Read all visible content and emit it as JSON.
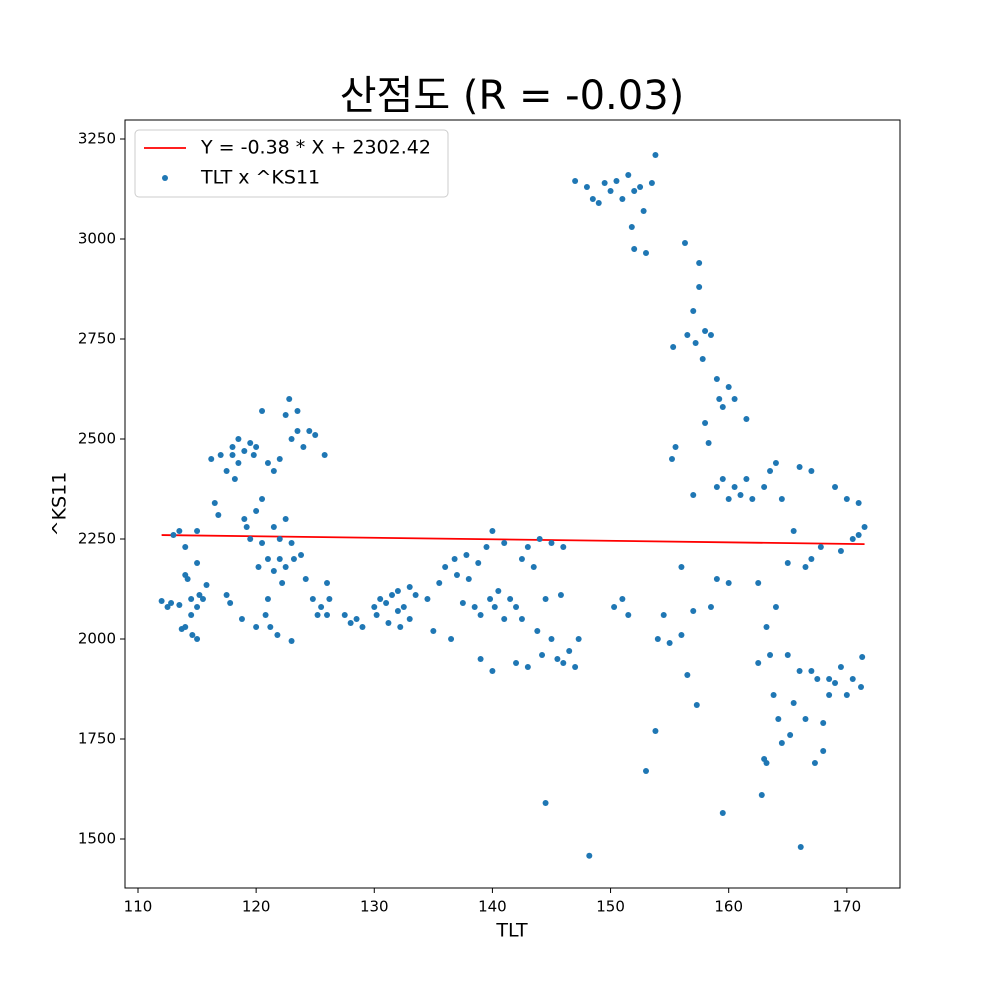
{
  "chart_data": {
    "type": "scatter",
    "title": "산점도 (R = -0.03)",
    "x_label": "TLT",
    "y_label": "^KS11",
    "xlim": [
      108.9,
      174.5
    ],
    "ylim": [
      1377.5,
      3297.5
    ],
    "xticks": [
      110,
      120,
      130,
      140,
      150,
      160,
      170
    ],
    "yticks": [
      1500,
      1750,
      2000,
      2250,
      2500,
      2750,
      3000,
      3250
    ],
    "grid": false,
    "legend": "upper left",
    "series": [
      {
        "name": "Y = -0.38 * X + 2302.42",
        "type": "line",
        "color": "#ff0000",
        "x": [
          112,
          171.5
        ],
        "values": [
          2259.86,
          2237.25
        ]
      },
      {
        "name": "TLT x ^KS11",
        "type": "scatter",
        "color": "#1f77b4",
        "x": [
          112,
          112.5,
          112.8,
          113,
          113.5,
          113.5,
          113.7,
          114,
          114,
          114,
          114.2,
          114.5,
          114.5,
          114.6,
          115,
          115,
          115,
          115,
          115.2,
          115.5,
          115.8,
          116.2,
          116.5,
          116.8,
          117,
          117.5,
          117.5,
          117.8,
          118,
          118,
          118.2,
          118.5,
          118.5,
          118.8,
          119,
          119,
          119.2,
          119.5,
          119.5,
          119.8,
          120,
          120,
          120,
          120.2,
          120.5,
          120.5,
          120.5,
          120.8,
          121,
          121,
          121,
          121.2,
          121.5,
          121.5,
          121.5,
          121.8,
          122,
          122,
          122,
          122.2,
          122.5,
          122.5,
          122.5,
          122.8,
          123,
          123,
          123,
          123.2,
          123.5,
          123.5,
          123.8,
          124,
          124.2,
          124.5,
          124.8,
          125,
          125.2,
          125.5,
          125.8,
          126,
          126,
          126.2,
          127.5,
          128,
          128.5,
          129,
          130,
          130.2,
          130.5,
          131,
          131.2,
          131.5,
          132,
          132,
          132.2,
          132.5,
          133,
          133,
          133.5,
          134.5,
          135,
          135.5,
          136,
          136.5,
          136.8,
          137,
          137.5,
          137.8,
          138,
          138.5,
          138.8,
          139,
          139,
          139.5,
          139.8,
          140,
          140,
          140.2,
          140.5,
          141,
          141,
          141.5,
          142,
          142,
          142.5,
          142.5,
          143,
          143,
          143.5,
          143.8,
          144,
          144.2,
          144.5,
          144.5,
          145,
          145,
          145.5,
          145.8,
          146,
          146,
          146.5,
          147,
          147.3,
          147,
          148,
          148.5,
          149,
          149.5,
          150,
          150.5,
          151,
          151.5,
          152,
          152,
          152.5,
          152.8,
          153,
          153.5,
          153.8,
          151.8,
          148.2,
          150.3,
          151,
          151.5,
          153,
          153.8,
          154,
          154.5,
          155,
          155.2,
          155.5,
          155.3,
          156,
          156,
          156.5,
          157,
          156.3,
          156.5,
          157,
          157.2,
          157.5,
          157.5,
          157.8,
          158,
          158.3,
          158.5,
          159,
          159.2,
          159.5,
          160,
          160.5,
          161.5,
          157,
          158,
          159,
          159.5,
          160,
          160.5,
          161,
          161.5,
          162,
          157.3,
          158.5,
          159.5,
          159,
          160,
          162.5,
          163,
          163.2,
          163.5,
          163.5,
          163.8,
          164,
          164,
          164.2,
          164.5,
          164.5,
          165,
          165,
          165.2,
          165.5,
          165.5,
          166,
          166,
          166.1,
          166.5,
          166.5,
          167,
          167,
          167,
          167.3,
          167.5,
          167.8,
          168,
          168,
          168.5,
          168.5,
          169,
          169,
          169.5,
          169.5,
          170,
          170,
          170.5,
          170.5,
          171,
          171,
          171.2,
          171.3,
          171.5,
          162.8,
          163,
          163.2,
          162.5
        ],
        "values": [
          2095,
          2080,
          2090,
          2260,
          2270,
          2085,
          2025,
          2030,
          2230,
          2160,
          2150,
          2100,
          2060,
          2010,
          2000,
          2080,
          2270,
          2190,
          2110,
          2100,
          2135,
          2450,
          2340,
          2310,
          2460,
          2420,
          2110,
          2090,
          2480,
          2460,
          2400,
          2500,
          2440,
          2050,
          2300,
          2470,
          2280,
          2490,
          2250,
          2460,
          2480,
          2320,
          2030,
          2180,
          2570,
          2350,
          2240,
          2060,
          2440,
          2200,
          2100,
          2030,
          2420,
          2280,
          2170,
          2010,
          2450,
          2250,
          2200,
          2140,
          2560,
          2300,
          2180,
          2600,
          2240,
          2500,
          1995,
          2200,
          2570,
          2520,
          2210,
          2480,
          2150,
          2520,
          2100,
          2510,
          2060,
          2080,
          2460,
          2060,
          2140,
          2100,
          2060,
          2040,
          2050,
          2030,
          2080,
          2060,
          2100,
          2090,
          2040,
          2110,
          2070,
          2120,
          2030,
          2080,
          2130,
          2050,
          2110,
          2100,
          2020,
          2140,
          2180,
          2000,
          2200,
          2160,
          2090,
          2210,
          2150,
          2080,
          2190,
          2060,
          1950,
          2230,
          2100,
          1920,
          2270,
          2080,
          2120,
          2050,
          2240,
          2100,
          2080,
          1940,
          2050,
          2200,
          1930,
          2230,
          2180,
          2020,
          2250,
          1960,
          2100,
          1590,
          2000,
          2240,
          1950,
          2110,
          2230,
          1940,
          1970,
          1930,
          2000,
          3145,
          3130,
          3100,
          3090,
          3140,
          3120,
          3145,
          3100,
          3160,
          3120,
          2975,
          3130,
          3070,
          2965,
          3140,
          3210,
          3030,
          1458,
          2080,
          2100,
          2060,
          1670,
          1770,
          2000,
          2060,
          1990,
          2450,
          2480,
          2730,
          2180,
          2010,
          1910,
          2070,
          2990,
          2760,
          2820,
          2740,
          2880,
          2940,
          2700,
          2770,
          2490,
          2760,
          2650,
          2600,
          2580,
          2630,
          2600,
          2550,
          2360,
          2540,
          2380,
          2400,
          2350,
          2380,
          2360,
          2400,
          2350,
          1835,
          2080,
          1565,
          2150,
          2140,
          2140,
          2380,
          2030,
          2420,
          1960,
          1860,
          2440,
          2080,
          1800,
          2350,
          1740,
          2190,
          1960,
          1760,
          2270,
          1840,
          2430,
          1920,
          1480,
          2180,
          1800,
          2200,
          1920,
          2420,
          1690,
          1900,
          2230,
          1720,
          1790,
          1900,
          1860,
          2380,
          1890,
          2220,
          1930,
          2350,
          1860,
          2250,
          1900,
          2340,
          2260,
          1880,
          1955,
          2280,
          1610,
          1700,
          1690,
          1940
        ]
      }
    ]
  }
}
